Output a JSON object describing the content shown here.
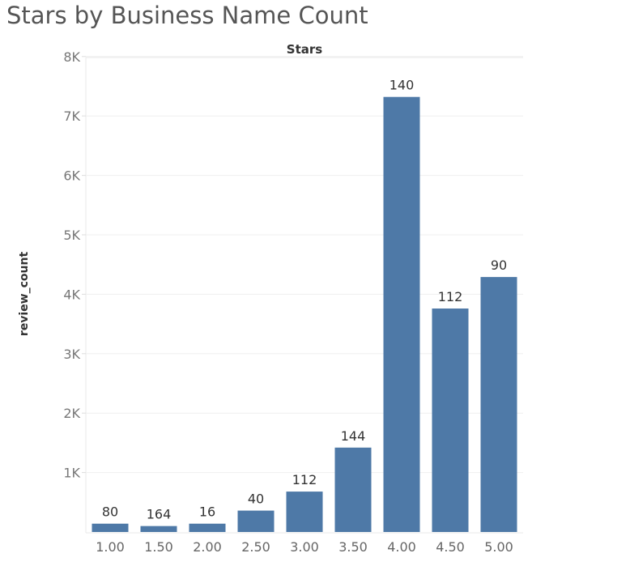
{
  "chart_data": {
    "type": "bar",
    "title": "Stars by Business Name Count",
    "column_header": "Stars",
    "ylabel": "review_count",
    "categories": [
      "1.00",
      "1.50",
      "2.00",
      "2.50",
      "3.00",
      "3.50",
      "4.00",
      "4.50",
      "5.00"
    ],
    "values": [
      140,
      100,
      140,
      360,
      680,
      1420,
      7320,
      3760,
      4290
    ],
    "data_labels": [
      "80",
      "164",
      "16",
      "40",
      "112",
      "144",
      "140",
      "112",
      "90"
    ],
    "y_ticks": [
      1000,
      2000,
      3000,
      4000,
      5000,
      6000,
      7000,
      8000
    ],
    "y_tick_labels": [
      "1K",
      "2K",
      "3K",
      "4K",
      "5K",
      "6K",
      "7K",
      "8K"
    ],
    "ylim": [
      0,
      8000
    ],
    "grid": true,
    "bar_color": "#4e79a7"
  }
}
